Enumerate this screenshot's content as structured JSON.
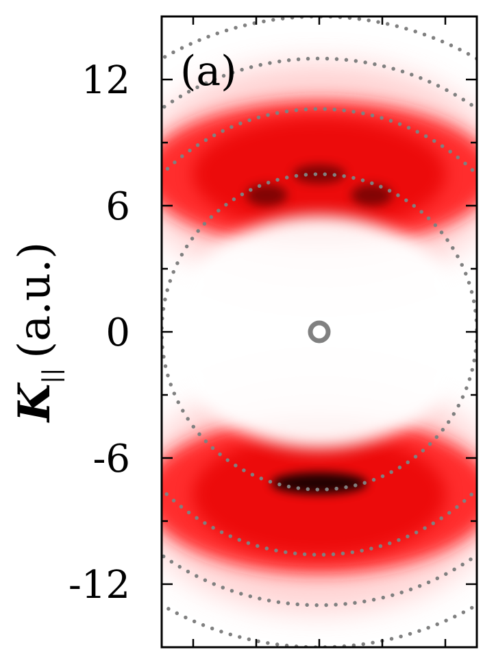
{
  "chart_data": {
    "type": "heatmap",
    "panel_label": "(a)",
    "ylabel_main": "K",
    "ylabel_sub": "||",
    "ylabel_units": "(a.u.)",
    "ylim": [
      -15,
      15
    ],
    "yticks": [
      12,
      6,
      0,
      -6,
      -12
    ],
    "ytick_labels": [
      "12",
      "6",
      "0",
      "-6",
      "-12"
    ],
    "xlim": [
      -7.5,
      7.5
    ],
    "x_minor_ticks": [
      -6,
      -3,
      0,
      3,
      6
    ],
    "y_minor_ticks": [
      -15,
      -12,
      -9,
      -6,
      -3,
      0,
      3,
      6,
      9,
      12,
      15
    ],
    "colormap": [
      "#ffffff",
      "#ff0000",
      "#000000"
    ],
    "lobes": [
      {
        "position": "upper",
        "center_y": 8.5,
        "extent_y": [
          4,
          11
        ],
        "peaks_y": [
          7.5,
          6.5,
          6.5
        ],
        "peaks_x": [
          0,
          -2.5,
          2.5
        ]
      },
      {
        "position": "lower",
        "center_y": -8.0,
        "extent_y": [
          -11.5,
          -4
        ],
        "peaks_y": [
          -7.2
        ],
        "peaks_x": [
          0
        ]
      }
    ],
    "circles": [
      {
        "radius": 0.25,
        "style": "solid",
        "color": "#808080"
      },
      {
        "radius": 7.5,
        "style": "dotted",
        "color": "#808080"
      },
      {
        "radius": 10.6,
        "style": "dotted",
        "color": "#808080"
      },
      {
        "radius": 13,
        "style": "dotted",
        "color": "#808080"
      },
      {
        "radius": 15,
        "style": "dotted",
        "color": "#808080"
      }
    ]
  }
}
